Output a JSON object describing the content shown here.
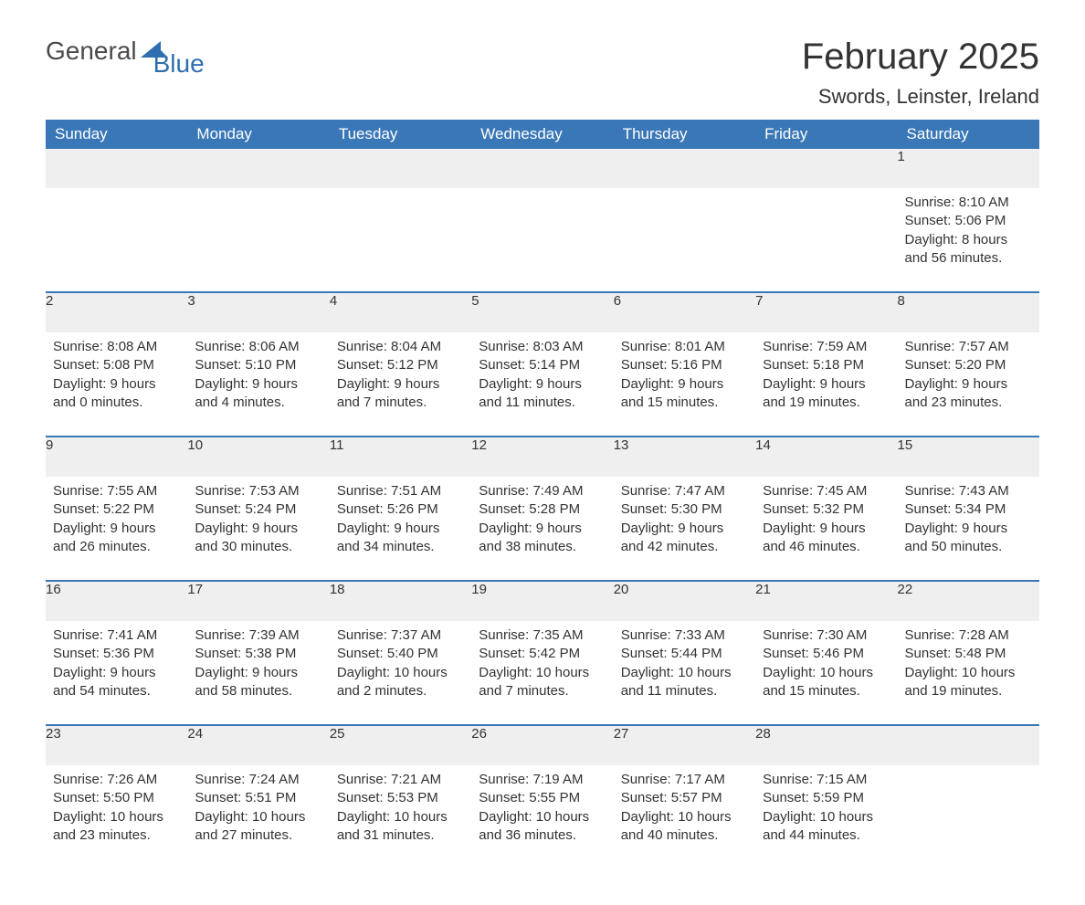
{
  "logo": {
    "part1": "General",
    "part2": "Blue",
    "sail_color": "#2f6fb0"
  },
  "title": "February 2025",
  "location": "Swords, Leinster, Ireland",
  "colors": {
    "header_bg": "#3a77b7",
    "header_text": "#ffffff",
    "daynum_bg": "#efefef",
    "row_border": "#3a77b7",
    "body_text": "#333333"
  },
  "weekdays": [
    "Sunday",
    "Monday",
    "Tuesday",
    "Wednesday",
    "Thursday",
    "Friday",
    "Saturday"
  ],
  "weeks": [
    {
      "days": [
        null,
        null,
        null,
        null,
        null,
        null,
        {
          "n": "1",
          "sunrise": "Sunrise: 8:10 AM",
          "sunset": "Sunset: 5:06 PM",
          "day1": "Daylight: 8 hours",
          "day2": "and 56 minutes."
        }
      ]
    },
    {
      "days": [
        {
          "n": "2",
          "sunrise": "Sunrise: 8:08 AM",
          "sunset": "Sunset: 5:08 PM",
          "day1": "Daylight: 9 hours",
          "day2": "and 0 minutes."
        },
        {
          "n": "3",
          "sunrise": "Sunrise: 8:06 AM",
          "sunset": "Sunset: 5:10 PM",
          "day1": "Daylight: 9 hours",
          "day2": "and 4 minutes."
        },
        {
          "n": "4",
          "sunrise": "Sunrise: 8:04 AM",
          "sunset": "Sunset: 5:12 PM",
          "day1": "Daylight: 9 hours",
          "day2": "and 7 minutes."
        },
        {
          "n": "5",
          "sunrise": "Sunrise: 8:03 AM",
          "sunset": "Sunset: 5:14 PM",
          "day1": "Daylight: 9 hours",
          "day2": "and 11 minutes."
        },
        {
          "n": "6",
          "sunrise": "Sunrise: 8:01 AM",
          "sunset": "Sunset: 5:16 PM",
          "day1": "Daylight: 9 hours",
          "day2": "and 15 minutes."
        },
        {
          "n": "7",
          "sunrise": "Sunrise: 7:59 AM",
          "sunset": "Sunset: 5:18 PM",
          "day1": "Daylight: 9 hours",
          "day2": "and 19 minutes."
        },
        {
          "n": "8",
          "sunrise": "Sunrise: 7:57 AM",
          "sunset": "Sunset: 5:20 PM",
          "day1": "Daylight: 9 hours",
          "day2": "and 23 minutes."
        }
      ]
    },
    {
      "days": [
        {
          "n": "9",
          "sunrise": "Sunrise: 7:55 AM",
          "sunset": "Sunset: 5:22 PM",
          "day1": "Daylight: 9 hours",
          "day2": "and 26 minutes."
        },
        {
          "n": "10",
          "sunrise": "Sunrise: 7:53 AM",
          "sunset": "Sunset: 5:24 PM",
          "day1": "Daylight: 9 hours",
          "day2": "and 30 minutes."
        },
        {
          "n": "11",
          "sunrise": "Sunrise: 7:51 AM",
          "sunset": "Sunset: 5:26 PM",
          "day1": "Daylight: 9 hours",
          "day2": "and 34 minutes."
        },
        {
          "n": "12",
          "sunrise": "Sunrise: 7:49 AM",
          "sunset": "Sunset: 5:28 PM",
          "day1": "Daylight: 9 hours",
          "day2": "and 38 minutes."
        },
        {
          "n": "13",
          "sunrise": "Sunrise: 7:47 AM",
          "sunset": "Sunset: 5:30 PM",
          "day1": "Daylight: 9 hours",
          "day2": "and 42 minutes."
        },
        {
          "n": "14",
          "sunrise": "Sunrise: 7:45 AM",
          "sunset": "Sunset: 5:32 PM",
          "day1": "Daylight: 9 hours",
          "day2": "and 46 minutes."
        },
        {
          "n": "15",
          "sunrise": "Sunrise: 7:43 AM",
          "sunset": "Sunset: 5:34 PM",
          "day1": "Daylight: 9 hours",
          "day2": "and 50 minutes."
        }
      ]
    },
    {
      "days": [
        {
          "n": "16",
          "sunrise": "Sunrise: 7:41 AM",
          "sunset": "Sunset: 5:36 PM",
          "day1": "Daylight: 9 hours",
          "day2": "and 54 minutes."
        },
        {
          "n": "17",
          "sunrise": "Sunrise: 7:39 AM",
          "sunset": "Sunset: 5:38 PM",
          "day1": "Daylight: 9 hours",
          "day2": "and 58 minutes."
        },
        {
          "n": "18",
          "sunrise": "Sunrise: 7:37 AM",
          "sunset": "Sunset: 5:40 PM",
          "day1": "Daylight: 10 hours",
          "day2": "and 2 minutes."
        },
        {
          "n": "19",
          "sunrise": "Sunrise: 7:35 AM",
          "sunset": "Sunset: 5:42 PM",
          "day1": "Daylight: 10 hours",
          "day2": "and 7 minutes."
        },
        {
          "n": "20",
          "sunrise": "Sunrise: 7:33 AM",
          "sunset": "Sunset: 5:44 PM",
          "day1": "Daylight: 10 hours",
          "day2": "and 11 minutes."
        },
        {
          "n": "21",
          "sunrise": "Sunrise: 7:30 AM",
          "sunset": "Sunset: 5:46 PM",
          "day1": "Daylight: 10 hours",
          "day2": "and 15 minutes."
        },
        {
          "n": "22",
          "sunrise": "Sunrise: 7:28 AM",
          "sunset": "Sunset: 5:48 PM",
          "day1": "Daylight: 10 hours",
          "day2": "and 19 minutes."
        }
      ]
    },
    {
      "days": [
        {
          "n": "23",
          "sunrise": "Sunrise: 7:26 AM",
          "sunset": "Sunset: 5:50 PM",
          "day1": "Daylight: 10 hours",
          "day2": "and 23 minutes."
        },
        {
          "n": "24",
          "sunrise": "Sunrise: 7:24 AM",
          "sunset": "Sunset: 5:51 PM",
          "day1": "Daylight: 10 hours",
          "day2": "and 27 minutes."
        },
        {
          "n": "25",
          "sunrise": "Sunrise: 7:21 AM",
          "sunset": "Sunset: 5:53 PM",
          "day1": "Daylight: 10 hours",
          "day2": "and 31 minutes."
        },
        {
          "n": "26",
          "sunrise": "Sunrise: 7:19 AM",
          "sunset": "Sunset: 5:55 PM",
          "day1": "Daylight: 10 hours",
          "day2": "and 36 minutes."
        },
        {
          "n": "27",
          "sunrise": "Sunrise: 7:17 AM",
          "sunset": "Sunset: 5:57 PM",
          "day1": "Daylight: 10 hours",
          "day2": "and 40 minutes."
        },
        {
          "n": "28",
          "sunrise": "Sunrise: 7:15 AM",
          "sunset": "Sunset: 5:59 PM",
          "day1": "Daylight: 10 hours",
          "day2": "and 44 minutes."
        },
        null
      ]
    }
  ]
}
